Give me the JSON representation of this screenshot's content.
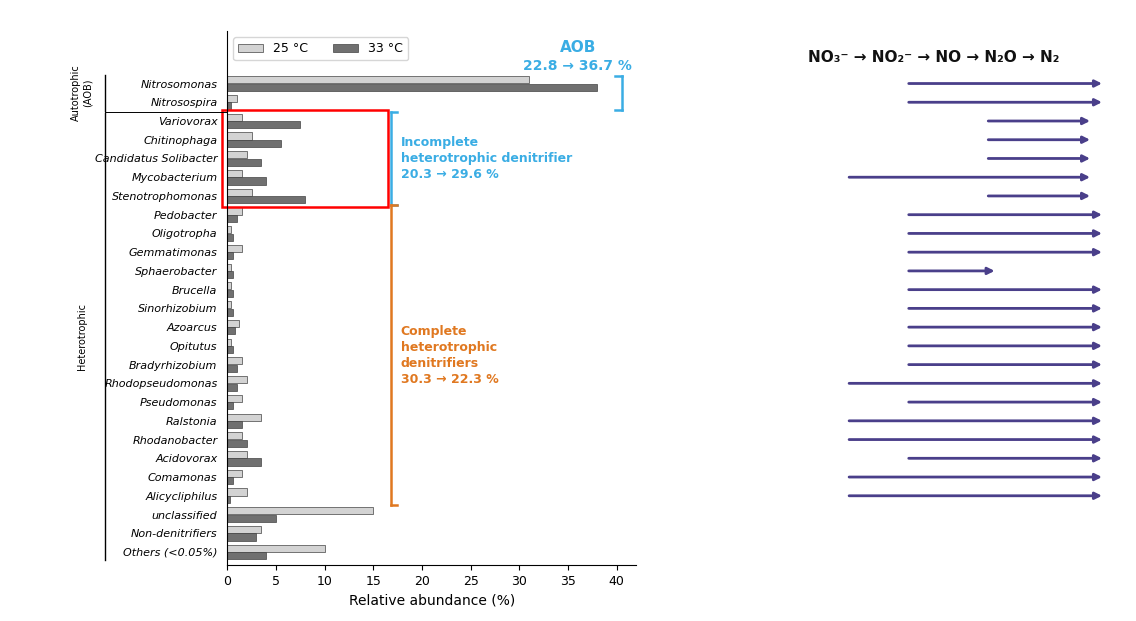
{
  "chart_data": {
    "type": "bar",
    "orientation": "horizontal",
    "categories": [
      "Nitrosomonas",
      "Nitrosospira",
      "Variovorax",
      "Chitinophaga",
      "Candidatus Solibacter",
      "Mycobacterium",
      "Stenotrophomonas",
      "Pedobacter",
      "Oligotropha",
      "Gemmatimonas",
      "Sphaerobacter",
      "Brucella",
      "Sinorhizobium",
      "Azoarcus",
      "Opitutus",
      "Bradyrhizobium",
      "Rhodopseudomonas",
      "Pseudomonas",
      "Ralstonia",
      "Rhodanobacter",
      "Acidovorax",
      "Comamonas",
      "Alicycliphilus",
      "unclassified",
      "Non-denitrifiers",
      "Others (<0.05%)"
    ],
    "series": [
      {
        "name": "25 °C",
        "color": "#d3d3d3",
        "values": [
          31.0,
          1.0,
          1.5,
          2.5,
          2.0,
          1.5,
          2.5,
          1.5,
          0.4,
          1.5,
          0.4,
          0.4,
          0.4,
          1.2,
          0.4,
          1.5,
          2.0,
          1.5,
          3.5,
          1.5,
          2.0,
          1.5,
          2.0,
          15.0,
          3.5,
          10.0
        ]
      },
      {
        "name": "33 °C",
        "color": "#707070",
        "values": [
          38.0,
          0.4,
          7.5,
          5.5,
          3.5,
          4.0,
          8.0,
          1.0,
          0.6,
          0.6,
          0.6,
          0.6,
          0.6,
          0.8,
          0.6,
          1.0,
          1.0,
          0.6,
          1.5,
          2.0,
          3.5,
          0.6,
          0.3,
          5.0,
          3.0,
          4.0
        ]
      }
    ],
    "xlabel": "Relative abundance (%)",
    "xlim": [
      0,
      42
    ],
    "xticks": [
      0,
      5,
      10,
      15,
      20,
      25,
      30,
      35,
      40
    ],
    "legend": "upper left",
    "groups": [
      {
        "label": "Autotrophic\n(AOB)",
        "from": "Nitrosomonas",
        "to": "Nitrosospira"
      },
      {
        "label": "Heterotrophic",
        "from": "Variovorax",
        "to": "Others (<0.05%)"
      }
    ],
    "highlight": {
      "from": "Variovorax",
      "to": "Stenotrophomonas",
      "color": "red"
    },
    "top_annotation": {
      "from": "Nitrosomonas",
      "to": "Nitrosospira",
      "texts": [
        "AOB",
        "22.8 → 36.7 %"
      ],
      "color": "#3aade4"
    },
    "brackets": [
      {
        "from": "Variovorax",
        "to": "Stenotrophomonas",
        "text": "Incomplete\nheterotrophic denitrifier\n20.3 → 29.6 %",
        "color": "#3aade4"
      },
      {
        "from": "Pedobacter",
        "to": "Alicycliphilus",
        "text": "Complete\nheterotrophic\ndenitrifiers\n30.3 → 22.3 %",
        "color": "#e07820"
      }
    ],
    "pathway": {
      "text": "NO₃⁻ → NO₂⁻ → NO → N₂O → N₂",
      "color": "#111111",
      "arrow_color": "#4a3f8a",
      "xlim": [
        0,
        10
      ],
      "arrows": [
        {
          "category": "Nitrosomonas",
          "start": 4.5,
          "end": 9.5
        },
        {
          "category": "Nitrosospira",
          "start": 4.5,
          "end": 9.5
        },
        {
          "category": "Variovorax",
          "start": 6.5,
          "end": 9.2
        },
        {
          "category": "Chitinophaga",
          "start": 6.5,
          "end": 9.2
        },
        {
          "category": "Candidatus Solibacter",
          "start": 6.5,
          "end": 9.2
        },
        {
          "category": "Mycobacterium",
          "start": 3.0,
          "end": 9.2
        },
        {
          "category": "Stenotrophomonas",
          "start": 6.5,
          "end": 9.2
        },
        {
          "category": "Pedobacter",
          "start": 4.5,
          "end": 9.5
        },
        {
          "category": "Oligotropha",
          "start": 4.5,
          "end": 9.5
        },
        {
          "category": "Gemmatimonas",
          "start": 4.5,
          "end": 9.5
        },
        {
          "category": "Sphaerobacter",
          "start": 4.5,
          "end": 6.8
        },
        {
          "category": "Brucella",
          "start": 4.5,
          "end": 9.5
        },
        {
          "category": "Sinorhizobium",
          "start": 4.5,
          "end": 9.5
        },
        {
          "category": "Azoarcus",
          "start": 4.5,
          "end": 9.5
        },
        {
          "category": "Opitutus",
          "start": 4.5,
          "end": 9.5
        },
        {
          "category": "Bradyrhizobium",
          "start": 4.5,
          "end": 9.5
        },
        {
          "category": "Rhodopseudomonas",
          "start": 3.0,
          "end": 9.5
        },
        {
          "category": "Pseudomonas",
          "start": 4.5,
          "end": 9.5
        },
        {
          "category": "Ralstonia",
          "start": 3.0,
          "end": 9.5
        },
        {
          "category": "Rhodanobacter",
          "start": 3.0,
          "end": 9.5
        },
        {
          "category": "Acidovorax",
          "start": 4.5,
          "end": 9.5
        },
        {
          "category": "Comamonas",
          "start": 3.0,
          "end": 9.5
        },
        {
          "category": "Alicycliphilus",
          "start": 3.0,
          "end": 9.5
        }
      ]
    }
  }
}
